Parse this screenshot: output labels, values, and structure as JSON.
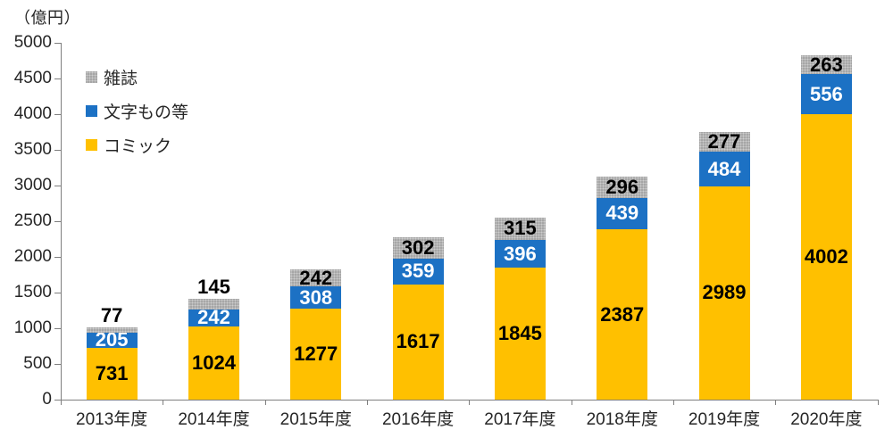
{
  "chart_data": {
    "type": "bar",
    "stacked": true,
    "unit_label": "（億円）",
    "categories": [
      "2013年度",
      "2014年度",
      "2015年度",
      "2016年度",
      "2017年度",
      "2018年度",
      "2019年度",
      "2020年度"
    ],
    "series": [
      {
        "name": "コミック",
        "color": "#FFC000",
        "label_color": "#000000",
        "pattern": "solid",
        "values": [
          731,
          1024,
          1277,
          1617,
          1845,
          2387,
          2989,
          4002
        ]
      },
      {
        "name": "文字もの等",
        "color": "#1C71C4",
        "label_color": "#FFFFFF",
        "pattern": "solid",
        "values": [
          205,
          242,
          308,
          359,
          396,
          439,
          484,
          556
        ]
      },
      {
        "name": "雑誌",
        "color": "#A6A6A6",
        "label_color": "#000000",
        "pattern": "speckle",
        "values": [
          77,
          145,
          242,
          302,
          315,
          296,
          277,
          263
        ]
      }
    ],
    "ylim": [
      0,
      5000
    ],
    "ytick_step": 500,
    "grid": false,
    "legend_position": "inside-top-left",
    "legend_order_top_to_bottom": [
      "雑誌",
      "文字もの等",
      "コミック"
    ]
  }
}
